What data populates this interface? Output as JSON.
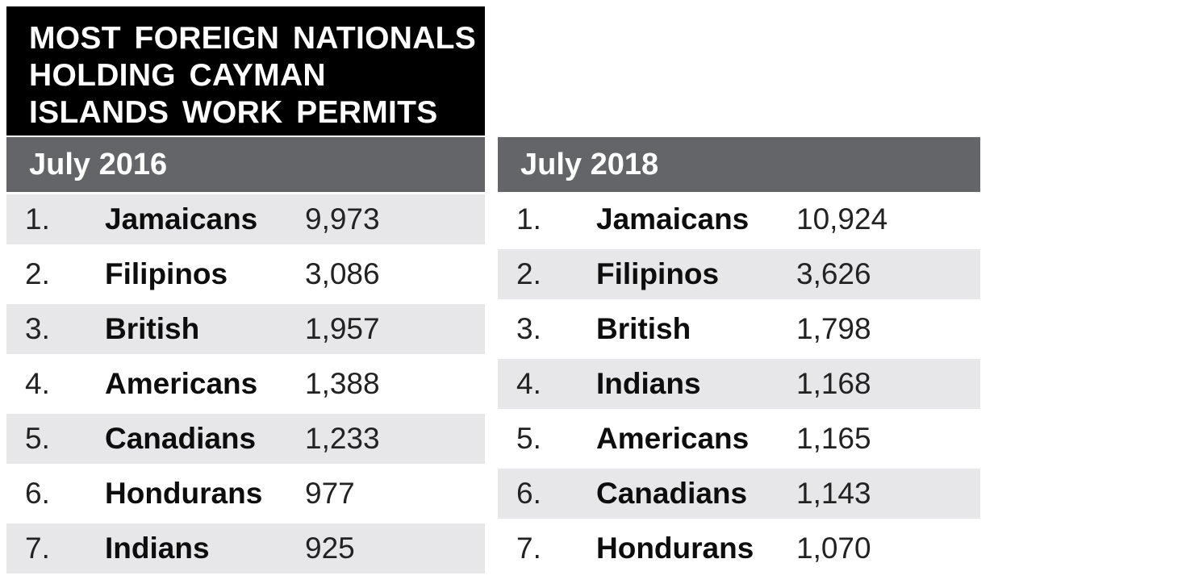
{
  "title": {
    "full": "MOST FOREIGN NATIONALS HOLDING CAYMAN ISLANDS WORK PERMITS",
    "lines": [
      "MOST FOREIGN NATIONALS",
      "HOLDING CAYMAN",
      "ISLANDS WORK PERMITS"
    ]
  },
  "tables": [
    {
      "period": "July 2016",
      "rows": [
        {
          "rank": "1.",
          "nationality": "Jamaicans",
          "count": "9,973"
        },
        {
          "rank": "2.",
          "nationality": "Filipinos",
          "count": "3,086"
        },
        {
          "rank": "3.",
          "nationality": "British",
          "count": "1,957"
        },
        {
          "rank": "4.",
          "nationality": "Americans",
          "count": "1,388"
        },
        {
          "rank": "5.",
          "nationality": "Canadians",
          "count": "1,233"
        },
        {
          "rank": "6.",
          "nationality": "Hondurans",
          "count": "977"
        },
        {
          "rank": "7.",
          "nationality": "Indians",
          "count": "925"
        }
      ]
    },
    {
      "period": "July 2018",
      "rows": [
        {
          "rank": "1.",
          "nationality": "Jamaicans",
          "count": "10,924"
        },
        {
          "rank": "2.",
          "nationality": "Filipinos",
          "count": "3,626"
        },
        {
          "rank": "3.",
          "nationality": "British",
          "count": "1,798"
        },
        {
          "rank": "4.",
          "nationality": "Indians",
          "count": "1,168"
        },
        {
          "rank": "5.",
          "nationality": "Americans",
          "count": "1,165"
        },
        {
          "rank": "6.",
          "nationality": "Canadians",
          "count": "1,143"
        },
        {
          "rank": "7.",
          "nationality": "Hondurans",
          "count": "1,070"
        }
      ]
    }
  ],
  "colors": {
    "title_bg": "#000000",
    "period_bar_bg": "#636569",
    "row_shade": "#e7e7e9",
    "text": "#1c1c1c"
  },
  "chart_data": {
    "type": "table",
    "title": "MOST FOREIGN NATIONALS HOLDING CAYMAN ISLANDS WORK PERMITS",
    "tables": [
      {
        "period": "July 2016",
        "columns": [
          "rank",
          "nationality",
          "work_permits"
        ],
        "rows": [
          [
            1,
            "Jamaicans",
            9973
          ],
          [
            2,
            "Filipinos",
            3086
          ],
          [
            3,
            "British",
            1957
          ],
          [
            4,
            "Americans",
            1388
          ],
          [
            5,
            "Canadians",
            1233
          ],
          [
            6,
            "Hondurans",
            977
          ],
          [
            7,
            "Indians",
            925
          ]
        ]
      },
      {
        "period": "July 2018",
        "columns": [
          "rank",
          "nationality",
          "work_permits"
        ],
        "rows": [
          [
            1,
            "Jamaicans",
            10924
          ],
          [
            2,
            "Filipinos",
            3626
          ],
          [
            3,
            "British",
            1798
          ],
          [
            4,
            "Indians",
            1168
          ],
          [
            5,
            "Americans",
            1165
          ],
          [
            6,
            "Canadians",
            1143
          ],
          [
            7,
            "Hondurans",
            1070
          ]
        ]
      }
    ]
  }
}
